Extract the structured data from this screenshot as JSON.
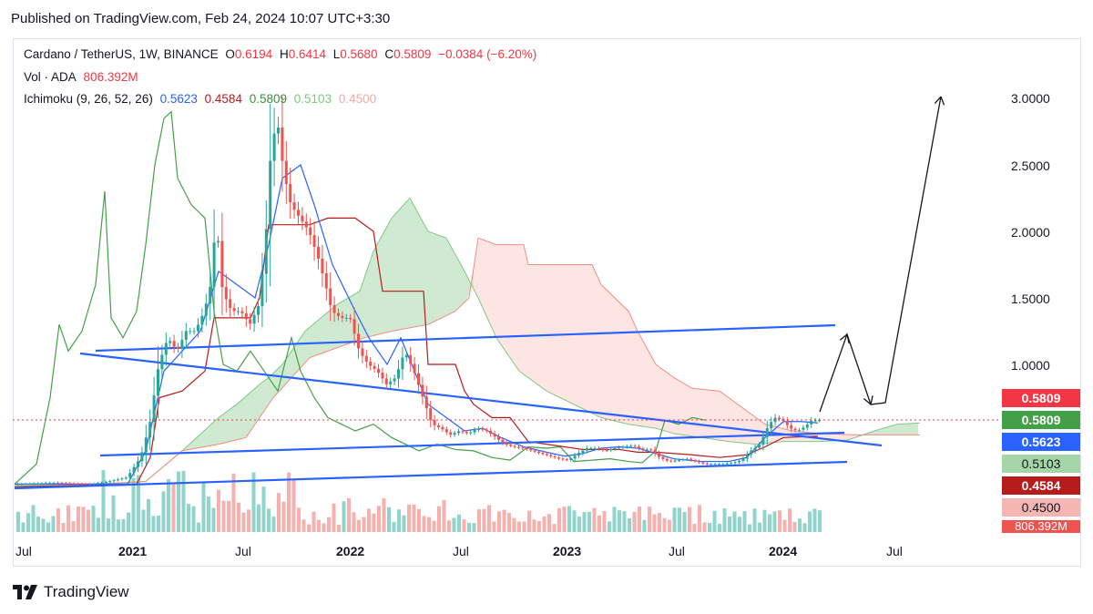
{
  "published": "Published on TradingView.com, Feb 24, 2024 10:07 UTC+3:30",
  "legend": {
    "symbol": "Cardano / TetherUS, 1W, BINANCE",
    "o_label": "O",
    "o_val": "0.6194",
    "h_label": "H",
    "h_val": "0.6414",
    "l_label": "L",
    "l_val": "0.5680",
    "c_label": "C",
    "c_val": "0.5809",
    "change": "−0.0384 (−6.20%)",
    "vol_label": "Vol · ADA",
    "vol_val": "806.392M",
    "ichimoku_label": "Ichimoku (9, 26, 52, 26)",
    "ichi_conv": "0.5623",
    "ichi_base": "0.4584",
    "ichi_lag": "0.5809",
    "ichi_spanA": "0.5103",
    "ichi_spanB": "0.4500"
  },
  "y_axis": [
    "3.0000",
    "2.5000",
    "2.0000",
    "1.5000",
    "1.0000"
  ],
  "x_axis": [
    "Jul",
    "2021",
    "Jul",
    "2022",
    "Jul",
    "2023",
    "Jul",
    "2024",
    "Jul"
  ],
  "price_tags": {
    "close": "0.5809",
    "lagging": "0.5809",
    "conversion": "0.5623",
    "span_a": "0.5103",
    "base": "0.4584",
    "span_b": "0.4500",
    "volume": "806.392M"
  },
  "colors": {
    "up": "#26a69a",
    "down": "#ef5350",
    "conversion": "#2962ff",
    "base": "#b71c1c",
    "lagging": "#43a047",
    "cloud_green": "#a5d6a7",
    "cloud_red": "#f8bbb8",
    "trendline": "#2962ff"
  },
  "logo": "TradingView",
  "chart_data": {
    "type": "line",
    "title": "Cardano / TetherUS, 1W, BINANCE",
    "x": [
      "2020-07",
      "2020-10",
      "2021-01",
      "2021-04",
      "2021-07",
      "2021-09",
      "2021-12",
      "2022-03",
      "2022-06",
      "2022-09",
      "2022-12",
      "2023-03",
      "2023-06",
      "2023-09",
      "2023-12",
      "2024-02"
    ],
    "series": [
      {
        "name": "Cardano / TetherUS",
        "values": [
          0.1,
          0.1,
          0.3,
          1.25,
          1.3,
          2.9,
          1.35,
          1.1,
          0.5,
          0.45,
          0.27,
          0.38,
          0.27,
          0.25,
          0.6,
          0.58
        ]
      }
    ],
    "ylim": [
      0,
      3.0
    ],
    "grid": false,
    "projection_points": [
      0.58,
      1.25,
      0.7,
      3.0
    ]
  }
}
